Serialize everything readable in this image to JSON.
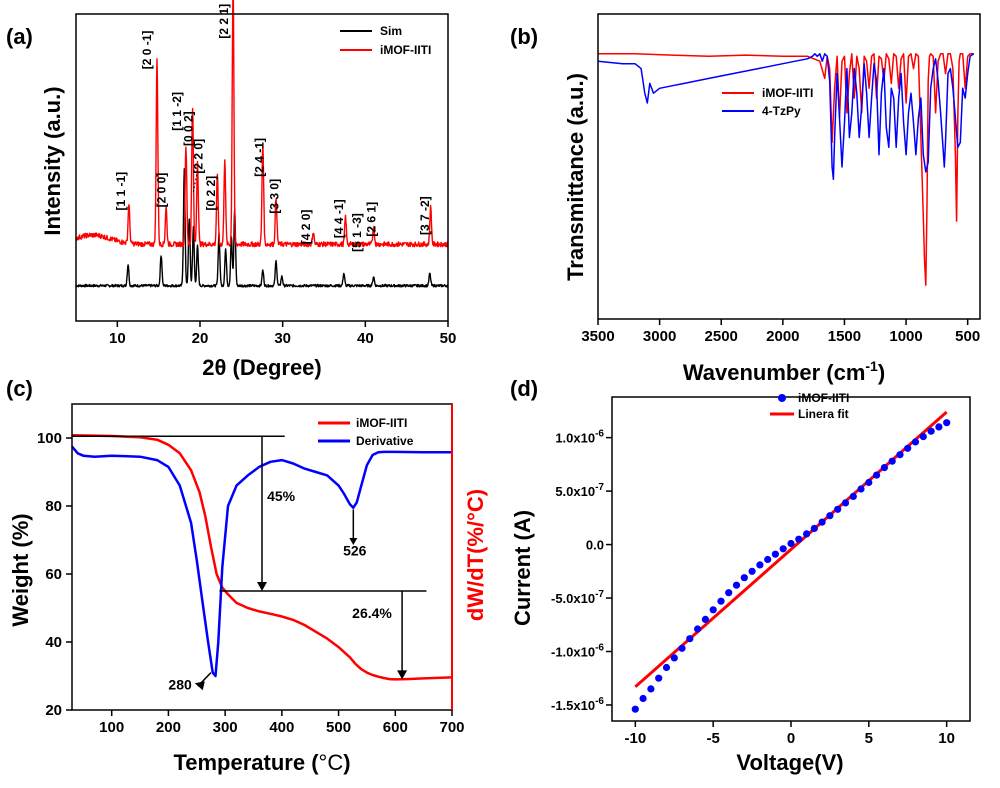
{
  "chart_data": [
    {
      "id": "a",
      "panel_label": "(a)",
      "type": "line",
      "xlabel": "2θ (Degree)",
      "ylabel": "Intensity (a.u.)",
      "xlim": [
        5,
        50
      ],
      "ylim": [
        0,
        1
      ],
      "xticks": [
        10,
        20,
        30,
        40,
        50
      ],
      "show_y_ticks": false,
      "legend": {
        "position": "top-right",
        "entries": [
          "Sim",
          "iMOF-IITI"
        ]
      },
      "series": [
        {
          "name": "Sim",
          "color": "#000000",
          "baseline": 0.115,
          "noise": 0.004,
          "peaks": [
            {
              "x": 11.3,
              "h": 0.07
            },
            {
              "x": 15.3,
              "h": 0.1
            },
            {
              "x": 18.1,
              "h": 0.38
            },
            {
              "x": 18.7,
              "h": 0.22
            },
            {
              "x": 19.2,
              "h": 0.19
            },
            {
              "x": 19.7,
              "h": 0.13
            },
            {
              "x": 22.3,
              "h": 0.17
            },
            {
              "x": 23.1,
              "h": 0.12
            },
            {
              "x": 23.8,
              "h": 0.16
            },
            {
              "x": 24.2,
              "h": 0.25
            },
            {
              "x": 27.6,
              "h": 0.05
            },
            {
              "x": 29.2,
              "h": 0.08
            },
            {
              "x": 29.9,
              "h": 0.03
            },
            {
              "x": 37.4,
              "h": 0.04
            },
            {
              "x": 41.0,
              "h": 0.03
            },
            {
              "x": 47.8,
              "h": 0.04
            }
          ]
        },
        {
          "name": "iMOF-IITI",
          "color": "#ff0000",
          "baseline": 0.25,
          "noise": 0.008,
          "peaks": [
            {
              "x": 11.4,
              "h": 0.13
            },
            {
              "x": 14.8,
              "h": 0.61
            },
            {
              "x": 15.9,
              "h": 0.12
            },
            {
              "x": 18.3,
              "h": 0.32
            },
            {
              "x": 19.1,
              "h": 0.45
            },
            {
              "x": 19.7,
              "h": 0.27
            },
            {
              "x": 22.1,
              "h": 0.22
            },
            {
              "x": 23.0,
              "h": 0.28
            },
            {
              "x": 24.0,
              "h": 0.86
            },
            {
              "x": 27.6,
              "h": 0.33
            },
            {
              "x": 29.2,
              "h": 0.15
            },
            {
              "x": 33.7,
              "h": 0.04
            },
            {
              "x": 37.6,
              "h": 0.09
            },
            {
              "x": 41.0,
              "h": 0.06
            },
            {
              "x": 47.9,
              "h": 0.12
            }
          ]
        }
      ],
      "annotations": [
        {
          "text": "[1 1 -1]",
          "x": 10.9,
          "y": 0.36
        },
        {
          "text": "[2 0 -1]",
          "x": 14.1,
          "y": 0.82
        },
        {
          "text": "[2 0 0]",
          "x": 15.8,
          "y": 0.37
        },
        {
          "text": "[1 1 -2]",
          "x": 17.7,
          "y": 0.62
        },
        {
          "text": "[0 0 2]",
          "x": 19.1,
          "y": 0.57
        },
        {
          "text": "[2 2 0]",
          "x": 20.3,
          "y": 0.48
        },
        {
          "text": "[0 2 2]",
          "x": 21.8,
          "y": 0.36
        },
        {
          "text": "[2 2 1]",
          "x": 23.4,
          "y": 0.92
        },
        {
          "text": "[2 4 -1]",
          "x": 27.7,
          "y": 0.47
        },
        {
          "text": "[3 3 0]",
          "x": 29.5,
          "y": 0.35
        },
        {
          "text": "[4 2 0]",
          "x": 33.3,
          "y": 0.25
        },
        {
          "text": "[4 4 -1]",
          "x": 37.3,
          "y": 0.27
        },
        {
          "text": "[5 1 -3]",
          "x": 39.5,
          "y": 0.225
        },
        {
          "text": "[2 6 1]",
          "x": 41.2,
          "y": 0.275
        },
        {
          "text": "[3 7 -2]",
          "x": 47.7,
          "y": 0.28
        }
      ]
    },
    {
      "id": "b",
      "panel_label": "(b)",
      "type": "line",
      "xlabel": "Wavenumber (cm",
      "xlabel_sup": "-1",
      "xlabel_tail": ")",
      "ylabel": "Transmittance (a.u.)",
      "xlim": [
        3500,
        400
      ],
      "ylim": [
        0,
        1
      ],
      "xticks": [
        3500,
        3000,
        2500,
        2000,
        1500,
        1000,
        500
      ],
      "show_y_ticks": false,
      "legend": {
        "position": "top-right",
        "entries": [
          "iMOF-IITI",
          "4-TzPy"
        ]
      },
      "series": [
        {
          "name": "iMOF-IITI",
          "color": "#ff0000",
          "x": [
            3500,
            3200,
            2900,
            2600,
            2300,
            2000,
            1800,
            1700,
            1660,
            1640,
            1620,
            1600,
            1580,
            1560,
            1540,
            1520,
            1500,
            1480,
            1460,
            1440,
            1420,
            1400,
            1380,
            1360,
            1340,
            1320,
            1300,
            1280,
            1260,
            1240,
            1220,
            1200,
            1180,
            1160,
            1140,
            1120,
            1100,
            1080,
            1060,
            1040,
            1020,
            1000,
            980,
            960,
            940,
            920,
            900,
            880,
            860,
            850,
            840,
            830,
            820,
            810,
            800,
            780,
            760,
            740,
            720,
            700,
            680,
            660,
            640,
            620,
            600,
            590,
            580,
            570,
            560,
            540,
            520,
            500,
            480,
            450
          ],
          "y": [
            0.96,
            0.96,
            0.955,
            0.95,
            0.955,
            0.95,
            0.95,
            0.93,
            0.86,
            0.95,
            0.9,
            0.6,
            0.82,
            0.95,
            0.7,
            0.93,
            0.95,
            0.72,
            0.88,
            0.96,
            0.78,
            0.95,
            0.9,
            0.72,
            0.95,
            0.93,
            0.82,
            0.95,
            0.96,
            0.78,
            0.95,
            0.94,
            0.85,
            0.96,
            0.94,
            0.84,
            0.96,
            0.95,
            0.82,
            0.94,
            0.96,
            0.76,
            0.95,
            0.96,
            0.9,
            0.96,
            0.95,
            0.62,
            0.3,
            0.12,
            0.02,
            0.35,
            0.85,
            0.95,
            0.96,
            0.95,
            0.72,
            0.93,
            0.96,
            0.96,
            0.88,
            0.96,
            0.96,
            0.9,
            0.55,
            0.28,
            0.7,
            0.93,
            0.96,
            0.96,
            0.82,
            0.95,
            0.96,
            0.96
          ]
        },
        {
          "name": "4-TzPy",
          "color": "#0000ff",
          "x": [
            3500,
            3300,
            3200,
            3150,
            3120,
            3100,
            3080,
            3050,
            3000,
            2900,
            2800,
            2600,
            2400,
            2200,
            2000,
            1900,
            1800,
            1760,
            1740,
            1720,
            1700,
            1680,
            1660,
            1640,
            1620,
            1600,
            1590,
            1580,
            1560,
            1540,
            1520,
            1500,
            1480,
            1460,
            1440,
            1420,
            1400,
            1380,
            1360,
            1340,
            1320,
            1300,
            1280,
            1260,
            1240,
            1220,
            1200,
            1180,
            1160,
            1140,
            1120,
            1100,
            1080,
            1060,
            1040,
            1020,
            1000,
            980,
            960,
            940,
            920,
            900,
            880,
            860,
            840,
            820,
            800,
            780,
            760,
            740,
            720,
            700,
            690,
            680,
            660,
            640,
            620,
            600,
            580,
            560,
            540,
            520,
            500,
            480,
            450
          ],
          "y": [
            0.93,
            0.92,
            0.92,
            0.9,
            0.8,
            0.76,
            0.84,
            0.8,
            0.82,
            0.83,
            0.84,
            0.86,
            0.88,
            0.9,
            0.92,
            0.93,
            0.94,
            0.95,
            0.96,
            0.95,
            0.96,
            0.93,
            0.96,
            0.95,
            0.85,
            0.5,
            0.45,
            0.62,
            0.88,
            0.7,
            0.5,
            0.68,
            0.9,
            0.62,
            0.72,
            0.9,
            0.8,
            0.62,
            0.75,
            0.92,
            0.8,
            0.62,
            0.78,
            0.92,
            0.85,
            0.55,
            0.8,
            0.9,
            0.66,
            0.58,
            0.82,
            0.78,
            0.58,
            0.78,
            0.88,
            0.68,
            0.55,
            0.72,
            0.8,
            0.68,
            0.55,
            0.7,
            0.78,
            0.55,
            0.48,
            0.52,
            0.82,
            0.9,
            0.94,
            0.85,
            0.72,
            0.58,
            0.5,
            0.6,
            0.88,
            0.9,
            0.82,
            0.7,
            0.58,
            0.6,
            0.82,
            0.78,
            0.88,
            0.95,
            0.96
          ]
        }
      ]
    },
    {
      "id": "c",
      "panel_label": "(c)",
      "type": "line",
      "xlabel": "Temperature (",
      "xlabel_deg": "°C",
      "xlabel_tail": ")",
      "ylabel": "Weight (%)",
      "y2label": "dW/dT(%/°C)",
      "xlim": [
        30,
        700
      ],
      "ylim": [
        20,
        110
      ],
      "xticks": [
        100,
        200,
        300,
        400,
        500,
        600,
        700
      ],
      "yticks": [
        20,
        40,
        60,
        80,
        100
      ],
      "legend": {
        "position": "top-right",
        "entries": [
          "iMOF-IITI",
          "Derivative"
        ]
      },
      "series": [
        {
          "name": "iMOF-IITI",
          "color": "#ff0000",
          "axis": "left",
          "x": [
            30,
            100,
            150,
            180,
            200,
            220,
            240,
            255,
            265,
            275,
            285,
            295,
            305,
            320,
            340,
            360,
            380,
            400,
            420,
            440,
            460,
            480,
            500,
            510,
            520,
            530,
            540,
            550,
            560,
            570,
            580,
            590,
            600,
            620,
            650,
            680,
            700
          ],
          "y": [
            100.8,
            100.6,
            100.2,
            99.5,
            98,
            95.5,
            90.5,
            84,
            77,
            68,
            60,
            56,
            54,
            51.5,
            50,
            49,
            48.3,
            47.5,
            46.5,
            45,
            43,
            41,
            38.5,
            37,
            35.5,
            33.5,
            32,
            31,
            30.3,
            29.8,
            29.4,
            29.1,
            29,
            29.1,
            29.3,
            29.5,
            29.6
          ]
        },
        {
          "name": "Derivative",
          "color": "#0000ff",
          "axis": "right",
          "x": [
            30,
            40,
            50,
            70,
            100,
            150,
            180,
            200,
            220,
            240,
            250,
            260,
            270,
            278,
            283,
            288,
            295,
            305,
            320,
            340,
            360,
            380,
            400,
            420,
            440,
            460,
            480,
            500,
            510,
            520,
            526,
            532,
            540,
            550,
            560,
            570,
            580,
            600,
            650,
            700
          ],
          "y": [
            97.5,
            95.5,
            94.8,
            94.5,
            94.8,
            94.5,
            93.5,
            91.5,
            86,
            75,
            64,
            52,
            40,
            31,
            30,
            40,
            62,
            80,
            86,
            89,
            91.5,
            93,
            93.5,
            92.5,
            91,
            90,
            89,
            86,
            83.5,
            80.5,
            79.5,
            81,
            86,
            92,
            95,
            95.8,
            95.9,
            95.9,
            95.8,
            95.8
          ]
        }
      ],
      "annotations": [
        {
          "text": "45%",
          "kind": "percent"
        },
        {
          "text": "26.4%",
          "kind": "percent"
        },
        {
          "text": "526",
          "kind": "peak"
        },
        {
          "text": "280",
          "kind": "peak"
        }
      ],
      "guide_lines": {
        "top_y": 100.5,
        "mid_y": 55,
        "low_y": 29,
        "arrow1_x": 365,
        "arrow2_x": 612,
        "top_x_end": 405,
        "mid_x_start": 290,
        "mid_x_end": 655
      }
    },
    {
      "id": "d",
      "panel_label": "(d)",
      "type": "scatter",
      "xlabel": "Voltage(V)",
      "ylabel": "Current (A)",
      "xlim": [
        -11.5,
        11.5
      ],
      "ylim": [
        -1.65e-06,
        1.38e-06
      ],
      "xticks": [
        -10,
        -5,
        0,
        5,
        10
      ],
      "yticks": [
        -1.5e-06,
        -1e-06,
        -5e-07,
        0.0,
        5e-07,
        1e-06
      ],
      "ytick_labels": [
        {
          "base": "-1.5x10",
          "exp": "-6"
        },
        {
          "base": "-1.0x10",
          "exp": "-6"
        },
        {
          "base": "-5.0x10",
          "exp": "-7"
        },
        {
          "base": "0.0",
          "exp": ""
        },
        {
          "base": "5.0x10",
          "exp": "-7"
        },
        {
          "base": "1.0x10",
          "exp": "-6"
        }
      ],
      "legend": {
        "position": "top-left",
        "entries": [
          "iMOF-IITI",
          "Linera fit"
        ]
      },
      "series": [
        {
          "name": "iMOF-IITI",
          "color": "#0000ff",
          "marker": "circle",
          "x": [
            -10,
            -9.5,
            -9,
            -8.5,
            -8,
            -7.5,
            -7,
            -6.5,
            -6,
            -5.5,
            -5,
            -4.5,
            -4,
            -3.5,
            -3,
            -2.5,
            -2,
            -1.5,
            -1,
            -0.5,
            0,
            0.5,
            1,
            1.5,
            2,
            2.5,
            3,
            3.5,
            4,
            4.5,
            5,
            5.5,
            6,
            6.5,
            7,
            7.5,
            8,
            8.5,
            9,
            9.5,
            10
          ],
          "y": [
            -1.54e-06,
            -1.44e-06,
            -1.35e-06,
            -1.25e-06,
            -1.15e-06,
            -1.06e-06,
            -9.7e-07,
            -8.8e-07,
            -7.9e-07,
            -7e-07,
            -6.1e-07,
            -5.3e-07,
            -4.5e-07,
            -3.8e-07,
            -3.1e-07,
            -2.5e-07,
            -1.9e-07,
            -1.4e-07,
            -9e-08,
            -4e-08,
            1e-08,
            5e-08,
            1e-07,
            1.5e-07,
            2.1e-07,
            2.7e-07,
            3.3e-07,
            3.9e-07,
            4.5e-07,
            5.2e-07,
            5.8e-07,
            6.5e-07,
            7.2e-07,
            7.8e-07,
            8.4e-07,
            9e-07,
            9.6e-07,
            1.01e-06,
            1.06e-06,
            1.1e-06,
            1.14e-06
          ]
        },
        {
          "name": "Linera fit",
          "color": "#ff0000",
          "type": "line",
          "x": [
            -10,
            10
          ],
          "y": [
            -1.33e-06,
            1.24e-06
          ]
        }
      ]
    }
  ]
}
